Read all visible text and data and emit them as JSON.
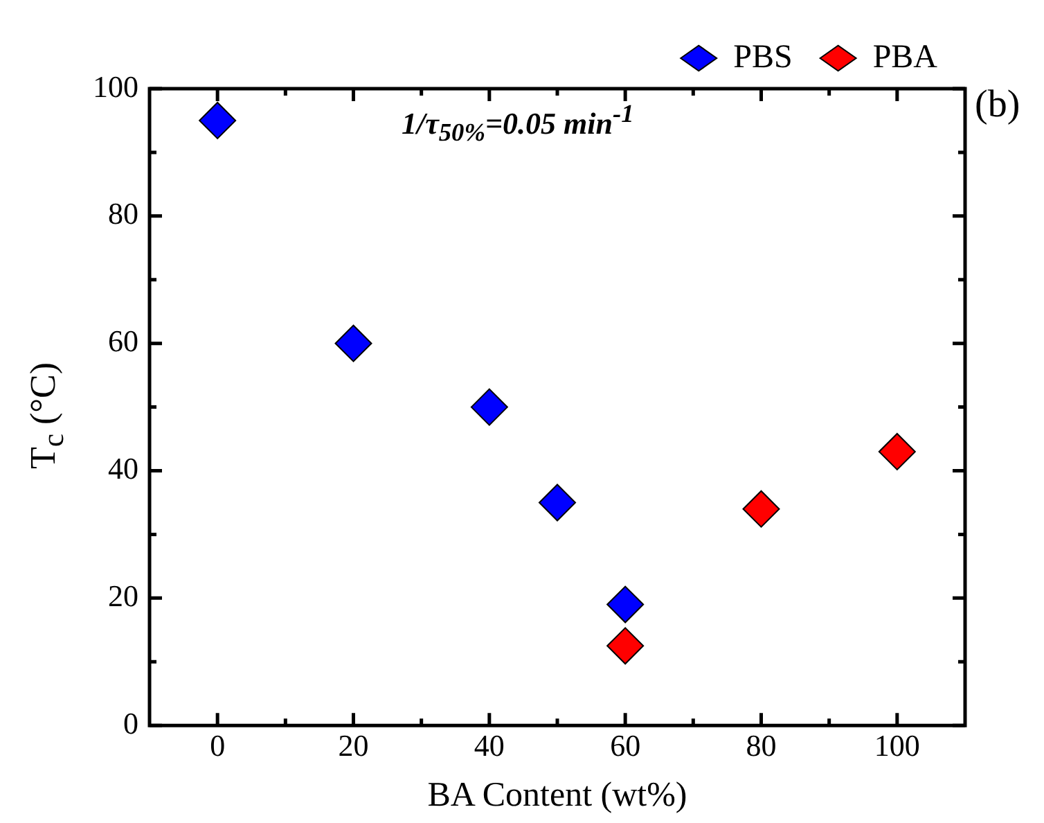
{
  "chart_data": {
    "type": "scatter",
    "xlabel": "BA Content (wt%)",
    "ylabel": "T$_{c}$ (°C)",
    "annotations": [
      "1/τ$_{50%}$=0.05 min$^{-1}$",
      "(b)"
    ],
    "xlim": [
      -10,
      110
    ],
    "xticks": [
      0,
      {
        "value": 10,
        "label": null
      },
      20,
      {
        "value": 30,
        "label": null
      },
      40,
      {
        "value": 50,
        "label": null
      },
      60,
      {
        "value": 70,
        "label": null
      },
      80,
      {
        "value": 90,
        "label": null
      },
      100
    ],
    "ylim": [
      0,
      100
    ],
    "yticks": [
      0,
      {
        "value": 10,
        "label": null
      },
      20,
      {
        "value": 30,
        "label": null
      },
      40,
      {
        "value": 50,
        "label": null
      },
      60,
      {
        "value": 70,
        "label": null
      },
      80,
      {
        "value": 90,
        "label": null
      },
      100
    ],
    "marker": "diamond",
    "legend": "top right",
    "grid": false,
    "series": [
      {
        "name": "PBS",
        "color": "#0000ff",
        "x": [
          0,
          20,
          40,
          50,
          60
        ],
        "values": [
          95,
          60,
          50,
          35,
          19
        ]
      },
      {
        "name": "PBA",
        "color": "#ff0000",
        "x": [
          60,
          80,
          100
        ],
        "values": [
          12.5,
          34,
          43
        ]
      }
    ]
  }
}
